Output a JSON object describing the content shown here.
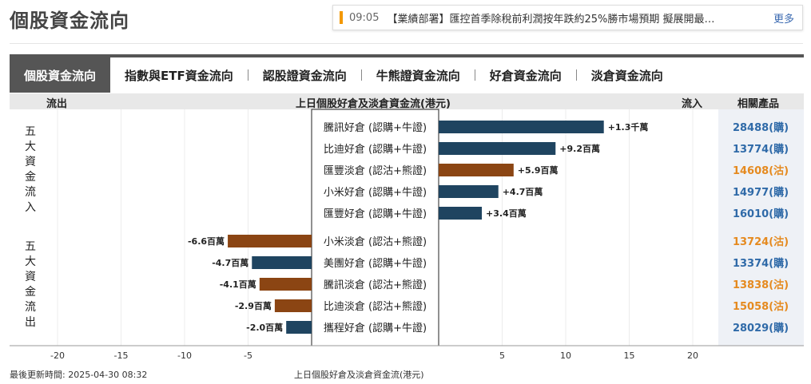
{
  "page": {
    "title": "個股資金流向"
  },
  "news": {
    "time": "09:05",
    "text": "【業績部署】匯控首季除稅前利潤按年跌約25%勝市場預期 擬展開最…",
    "more": "更多"
  },
  "tabs": [
    "個股資金流向",
    "指數與ETF資金流向",
    "認股證資金流向",
    "牛熊證資金流向",
    "好倉資金流向",
    "淡倉資金流向"
  ],
  "header": {
    "outflow": "流出",
    "title": "上日個股好倉及淡倉資金流(港元)",
    "inflow": "流入",
    "related": "相關產品"
  },
  "groups": {
    "inflow": "五大資金流入",
    "outflow": "五大資金流出"
  },
  "colors": {
    "long": "#1f4460",
    "short": "#8b4513",
    "long_text": "#2f6aa8",
    "short_text": "#e58a1f"
  },
  "chart_data": {
    "type": "bar",
    "orientation": "horizontal",
    "xlim": [
      -25,
      25
    ],
    "xticks": [
      -20,
      -15,
      -10,
      -5,
      5,
      10,
      15,
      20
    ],
    "xlabel": "",
    "grid": true,
    "rows": [
      {
        "label": "騰訊好倉 (認購+牛證)",
        "value": 13,
        "value_label": "+1.3千萬",
        "kind": "long",
        "product": "28488(購)"
      },
      {
        "label": "比迪好倉 (認購+牛證)",
        "value": 9.2,
        "value_label": "+9.2百萬",
        "kind": "long",
        "product": "13774(購)"
      },
      {
        "label": "匯豐淡倉 (認沽+熊證)",
        "value": 5.9,
        "value_label": "+5.9百萬",
        "kind": "short",
        "product": "14608(沽)"
      },
      {
        "label": "小米好倉 (認購+牛證)",
        "value": 4.7,
        "value_label": "+4.7百萬",
        "kind": "long",
        "product": "14977(購)"
      },
      {
        "label": "匯豐好倉 (認購+牛證)",
        "value": 3.4,
        "value_label": "+3.4百萬",
        "kind": "long",
        "product": "16010(購)"
      },
      {
        "label": "小米淡倉 (認沽+熊證)",
        "value": -6.6,
        "value_label": "-6.6百萬",
        "kind": "short",
        "product": "13724(沽)"
      },
      {
        "label": "美團好倉 (認購+牛證)",
        "value": -4.7,
        "value_label": "-4.7百萬",
        "kind": "long",
        "product": "13374(購)"
      },
      {
        "label": "騰訊淡倉 (認沽+熊證)",
        "value": -4.1,
        "value_label": "-4.1百萬",
        "kind": "short",
        "product": "13838(沽)"
      },
      {
        "label": "比迪淡倉 (認沽+熊證)",
        "value": -2.9,
        "value_label": "-2.9百萬",
        "kind": "short",
        "product": "15058(沽)"
      },
      {
        "label": "攜程好倉 (認購+牛證)",
        "value": -2.0,
        "value_label": "-2.0百萬",
        "kind": "long",
        "product": "28029(購)"
      }
    ]
  },
  "footer": {
    "updated": "最後更新時間: 2025-04-30 08:32",
    "caption": "上日個股好倉及淡倉資金流(港元)"
  }
}
